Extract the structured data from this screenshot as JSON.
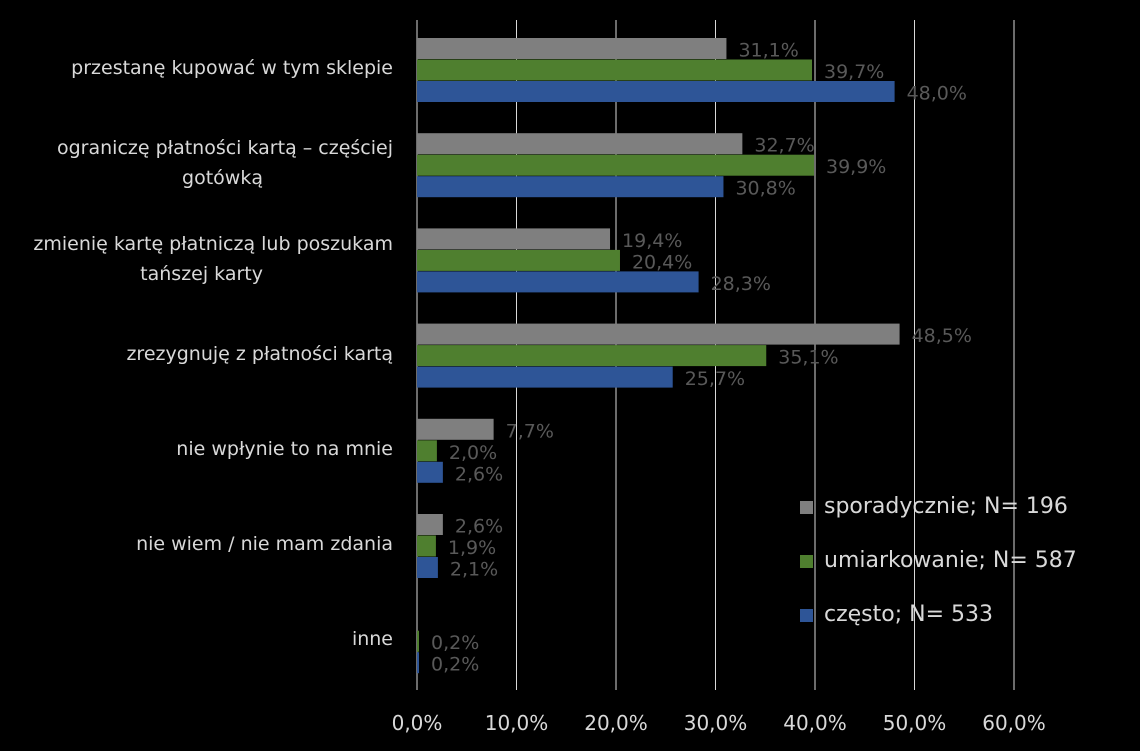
{
  "chart_data": {
    "type": "bar",
    "orientation": "horizontal",
    "title": "",
    "xlabel": "",
    "ylabel": "",
    "xlim": [
      0,
      60
    ],
    "tick_labels": [
      "0,0%",
      "10,0%",
      "20,0%",
      "30,0%",
      "40,0%",
      "50,0%",
      "60,0%"
    ],
    "grid": true,
    "legend_position": "bottom-right",
    "categories": [
      [
        "przestanę kupować w tym sklepie"
      ],
      [
        "ograniczę płatności kartą – częściej",
        "gotówką"
      ],
      [
        "zmienię kartę płatniczą lub poszukam",
        "tańszej karty"
      ],
      [
        "zrezygnuję z płatności kartą"
      ],
      [
        "nie wpłynie to na mnie"
      ],
      [
        "nie wiem / nie mam zdania"
      ],
      [
        "inne"
      ]
    ],
    "series": [
      {
        "name": "sporadycznie; N= 196",
        "color": "#7f7f7f",
        "values": [
          31.1,
          32.7,
          19.4,
          48.5,
          7.7,
          2.6,
          0
        ],
        "labels": [
          "31,1%",
          "32,7%",
          "19,4%",
          "48,5%",
          "7,7%",
          "2,6%",
          ""
        ]
      },
      {
        "name": "umiarkowanie; N= 587",
        "color": "#4f7f2f",
        "values": [
          39.7,
          39.9,
          20.4,
          35.1,
          2.0,
          1.9,
          0.2
        ],
        "labels": [
          "39,7%",
          "39,9%",
          "20,4%",
          "35,1%",
          "2,0%",
          "1,9%",
          "0,2%"
        ]
      },
      {
        "name": "często; N= 533",
        "color": "#2e5597",
        "values": [
          48.0,
          30.8,
          28.3,
          25.7,
          2.6,
          2.1,
          0.2
        ],
        "labels": [
          "48,0%",
          "30,8%",
          "28,3%",
          "25,7%",
          "2,6%",
          "2,1%",
          "0,2%"
        ]
      }
    ]
  }
}
